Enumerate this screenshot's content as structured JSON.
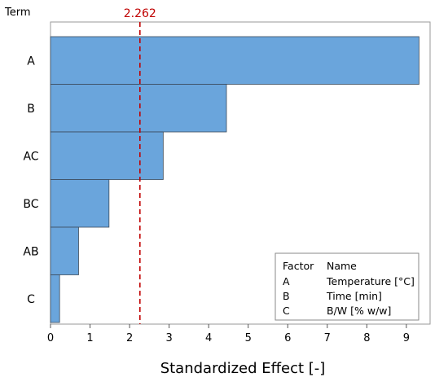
{
  "chart_data": {
    "type": "bar",
    "orientation": "horizontal",
    "ylabel": "Term",
    "xlabel": "Standardized Effect [-]",
    "categories": [
      "A",
      "B",
      "AC",
      "BC",
      "AB",
      "C"
    ],
    "values": [
      9.32,
      4.45,
      2.85,
      1.48,
      0.71,
      0.23
    ],
    "xlim": [
      0,
      9.6
    ],
    "xticks": [
      0,
      1,
      2,
      3,
      4,
      5,
      6,
      7,
      8,
      9
    ],
    "reference_line": {
      "value": 2.262,
      "label": "2.262",
      "color": "#c00000",
      "style": "dashed"
    },
    "bar_color": "#6aa5dc",
    "grid": false,
    "legend": {
      "placement": "bottom-right",
      "header": [
        "Factor",
        "Name"
      ],
      "rows": [
        [
          "A",
          "Temperature [°C]"
        ],
        [
          "B",
          "Time [min]"
        ],
        [
          "C",
          "B/W [% w/w]"
        ]
      ]
    }
  }
}
